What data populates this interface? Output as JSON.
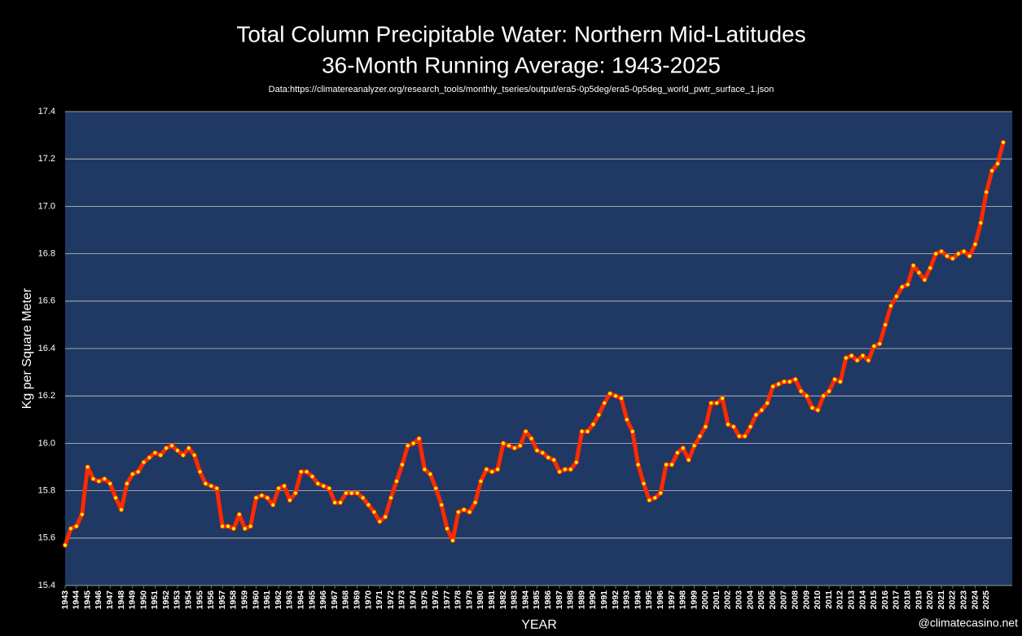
{
  "chart_data": {
    "type": "line",
    "title": "Total Column Precipitable Water: Northern Mid-Latitudes",
    "subtitle": "36-Month Running Average: 1943-2025",
    "source": "Data:https://climatereanalyzer.org/research_tools/monthly_tseries/output/era5-0p5deg/era5-0p5deg_world_pwtr_surface_1.json",
    "y_label": "Kg per Square Meter",
    "x_label": "YEAR",
    "watermark": "@climatecasino.net",
    "color": "#ff2a00",
    "marker_color": "#ffee00",
    "plot_color": "#203864",
    "grid": true,
    "xlim": [
      1943,
      2027.3
    ],
    "ylim": [
      15.4,
      17.4
    ],
    "yticks": [
      15.4,
      15.6,
      15.8,
      {
        "value": 16,
        "label": "16.0"
      },
      16.2,
      16.4,
      16.6,
      16.8,
      {
        "value": 17,
        "label": "17.0"
      },
      17.2,
      17.4
    ],
    "xticks": [
      1943,
      1944,
      1945,
      1946,
      1947,
      1948,
      1949,
      1950,
      1951,
      1952,
      1953,
      1954,
      1955,
      1956,
      1957,
      1958,
      1959,
      1960,
      1961,
      1962,
      1963,
      1964,
      1965,
      1966,
      1967,
      1968,
      1969,
      1970,
      1971,
      1972,
      1973,
      1974,
      1975,
      1976,
      1977,
      1978,
      1979,
      1980,
      1981,
      1982,
      1983,
      1984,
      1985,
      1986,
      1987,
      1988,
      1989,
      1990,
      1991,
      1992,
      1993,
      1994,
      1995,
      1996,
      1997,
      1998,
      1999,
      2000,
      2001,
      2002,
      2003,
      2004,
      2005,
      2006,
      2007,
      2008,
      2009,
      2010,
      2011,
      2012,
      2013,
      2014,
      2015,
      2016,
      2017,
      2018,
      2019,
      2020,
      2021,
      2022,
      2023,
      2024,
      2025
    ],
    "x": [
      1943,
      1943.5,
      1944,
      1944.5,
      1945,
      1945.5,
      1946,
      1946.5,
      1947,
      1947.5,
      1948,
      1948.5,
      1949,
      1949.5,
      1950,
      1950.5,
      1951,
      1951.5,
      1952,
      1952.5,
      1953,
      1953.5,
      1954,
      1954.5,
      1955,
      1955.5,
      1956,
      1956.5,
      1957,
      1957.5,
      1958,
      1958.5,
      1959,
      1959.5,
      1960,
      1960.5,
      1961,
      1961.5,
      1962,
      1962.5,
      1963,
      1963.5,
      1964,
      1964.5,
      1965,
      1965.5,
      1966,
      1966.5,
      1967,
      1967.5,
      1968,
      1968.5,
      1969,
      1969.5,
      1970,
      1970.5,
      1971,
      1971.5,
      1972,
      1972.5,
      1973,
      1973.5,
      1974,
      1974.5,
      1975,
      1975.5,
      1976,
      1976.5,
      1977,
      1977.5,
      1978,
      1978.5,
      1979,
      1979.5,
      1980,
      1980.5,
      1981,
      1981.5,
      1982,
      1982.5,
      1983,
      1983.5,
      1984,
      1984.5,
      1985,
      1985.5,
      1986,
      1986.5,
      1987,
      1987.5,
      1988,
      1988.5,
      1989,
      1989.5,
      1990,
      1990.5,
      1991,
      1991.5,
      1992,
      1992.5,
      1993,
      1993.5,
      1994,
      1994.5,
      1995,
      1995.5,
      1996,
      1996.5,
      1997,
      1997.5,
      1998,
      1998.5,
      1999,
      1999.5,
      2000,
      2000.5,
      2001,
      2001.5,
      2002,
      2002.5,
      2003,
      2003.5,
      2004,
      2004.5,
      2005,
      2005.5,
      2006,
      2006.5,
      2007,
      2007.5,
      2008,
      2008.5,
      2009,
      2009.5,
      2010,
      2010.5,
      2011,
      2011.5,
      2012,
      2012.5,
      2013,
      2013.5,
      2014,
      2014.5,
      2015,
      2015.5,
      2016,
      2016.5,
      2017,
      2017.5,
      2018,
      2018.5,
      2019,
      2019.5,
      2020,
      2020.5,
      2021,
      2021.5,
      2022,
      2022.5,
      2023,
      2023.5,
      2024,
      2024.5,
      2025,
      2025.5,
      2026,
      2026.5
    ],
    "values": [
      15.57,
      15.64,
      15.65,
      15.7,
      15.9,
      15.85,
      15.84,
      15.85,
      15.83,
      15.77,
      15.72,
      15.83,
      15.87,
      15.88,
      15.92,
      15.94,
      15.96,
      15.95,
      15.98,
      15.99,
      15.97,
      15.95,
      15.98,
      15.95,
      15.88,
      15.83,
      15.82,
      15.81,
      15.65,
      15.65,
      15.64,
      15.7,
      15.64,
      15.65,
      15.77,
      15.78,
      15.77,
      15.74,
      15.81,
      15.82,
      15.76,
      15.79,
      15.88,
      15.88,
      15.86,
      15.83,
      15.82,
      15.81,
      15.75,
      15.75,
      15.79,
      15.79,
      15.79,
      15.77,
      15.74,
      15.71,
      15.67,
      15.69,
      15.77,
      15.84,
      15.91,
      15.99,
      16.0,
      16.02,
      15.89,
      15.87,
      15.81,
      15.74,
      15.64,
      15.59,
      15.71,
      15.72,
      15.71,
      15.75,
      15.84,
      15.89,
      15.88,
      15.89,
      16.0,
      15.99,
      15.98,
      15.99,
      16.05,
      16.02,
      15.97,
      15.96,
      15.94,
      15.93,
      15.88,
      15.89,
      15.89,
      15.92,
      16.05,
      16.05,
      16.08,
      16.12,
      16.17,
      16.21,
      16.2,
      16.19,
      16.1,
      16.05,
      15.91,
      15.83,
      15.76,
      15.77,
      15.79,
      15.91,
      15.91,
      15.96,
      15.98,
      15.93,
      15.99,
      16.03,
      16.07,
      16.17,
      16.17,
      16.19,
      16.08,
      16.07,
      16.03,
      16.03,
      16.07,
      16.12,
      16.14,
      16.17,
      16.24,
      16.25,
      16.26,
      16.26,
      16.27,
      16.22,
      16.2,
      16.15,
      16.14,
      16.2,
      16.22,
      16.27,
      16.26,
      16.36,
      16.37,
      16.35,
      16.37,
      16.35,
      16.41,
      16.42,
      16.5,
      16.58,
      16.62,
      16.66,
      16.67,
      16.75,
      16.72,
      16.69,
      16.74,
      16.8,
      16.81,
      16.79,
      16.78,
      16.8,
      16.81,
      16.79,
      16.84,
      16.93,
      17.06,
      17.15,
      17.18,
      17.27
    ]
  }
}
